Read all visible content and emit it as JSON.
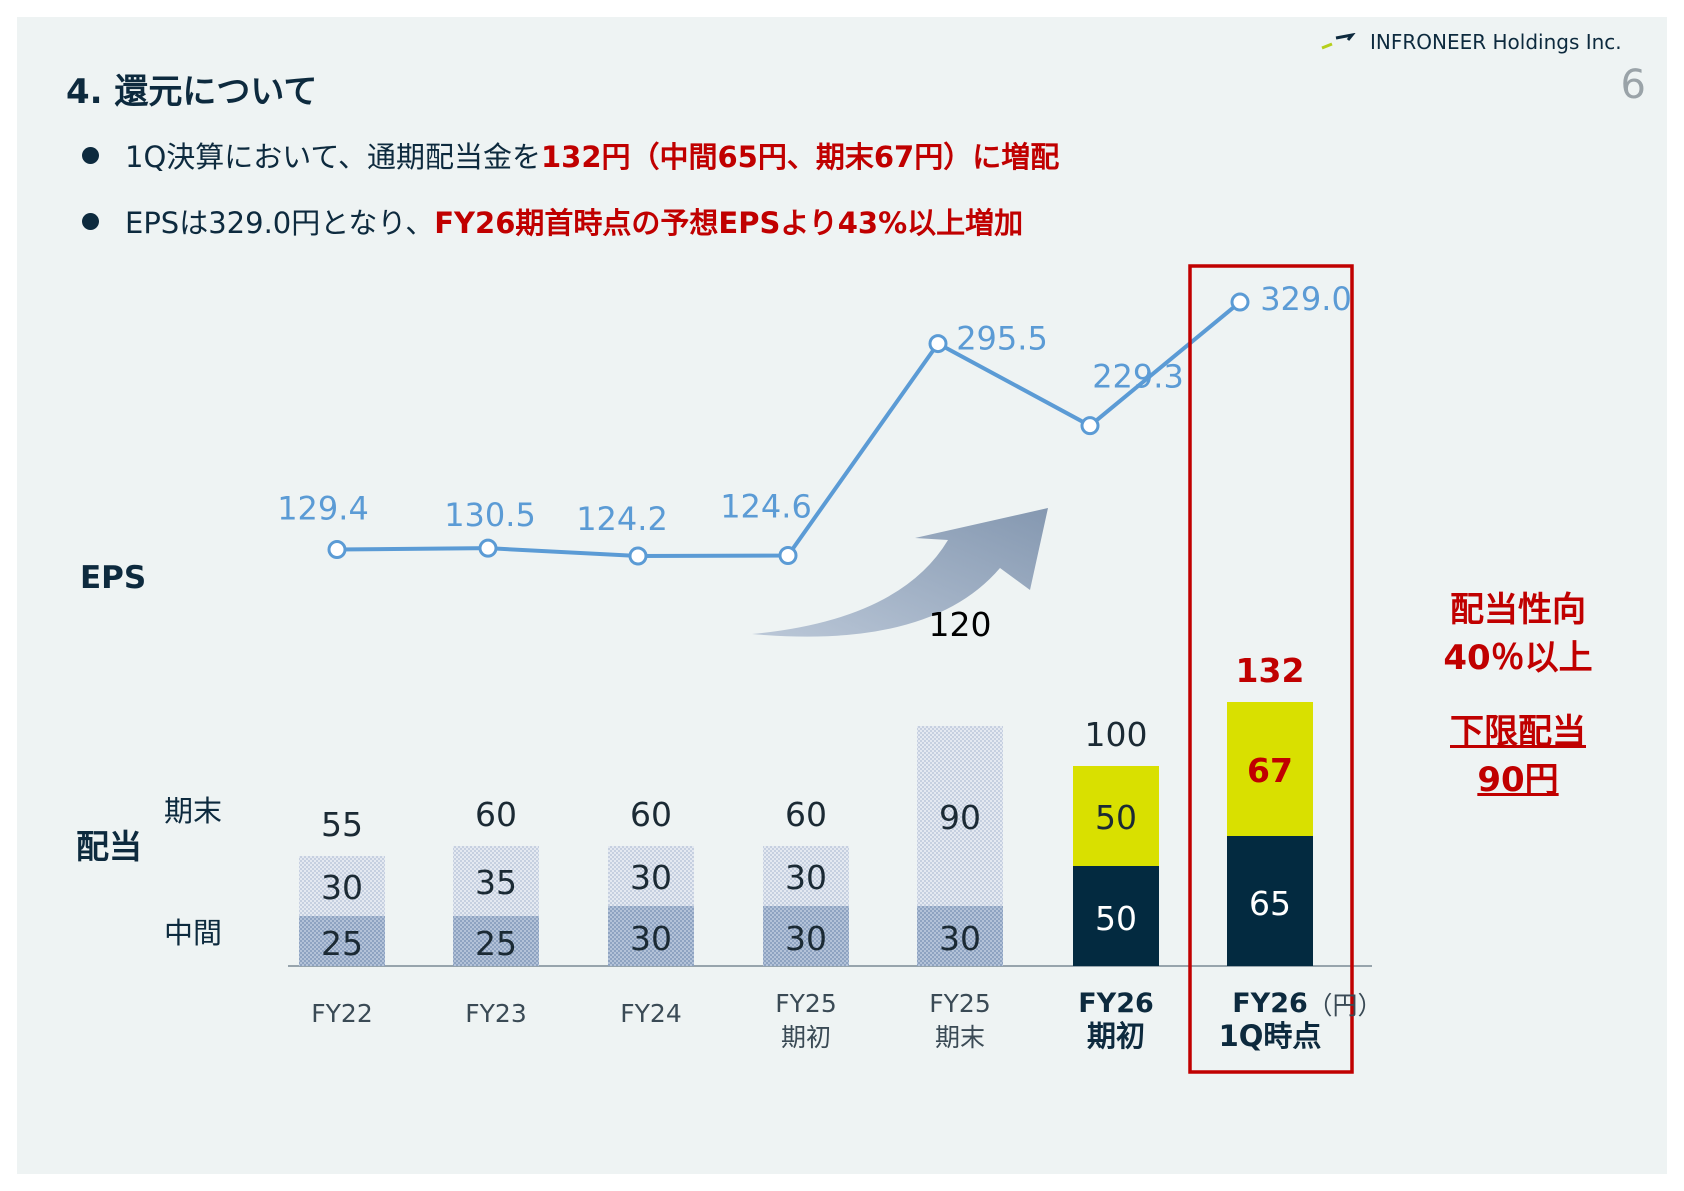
{
  "header": {
    "company": "INFRONEER Holdings Inc.",
    "page_number": "6",
    "title": "4. 還元について"
  },
  "bullets": [
    {
      "plain": "1Q決算において、通期配当金を",
      "highlight": "132円（中間65円、期末67円）に増配"
    },
    {
      "plain": "EPSは329.0円となり、",
      "highlight": "FY26期首時点の予想EPSより43%以上増加"
    }
  ],
  "labels": {
    "eps": "EPS",
    "dividend": "配当",
    "year_end": "期末",
    "interim": "中間",
    "unit": "（円）"
  },
  "note": {
    "line1": "配当性向",
    "line2": "40％以上",
    "line3": "下限配当",
    "line4": "90円"
  },
  "colors": {
    "eps_line": "#5b9bd5",
    "highlight_red": "#c00000",
    "navy": "#032a40",
    "yellow": "#d9e000",
    "hatched_light": "#d5dcea",
    "hatched_dark": "#9db0cb",
    "arrow": "#8497b0"
  },
  "chart_data": {
    "type": "bar",
    "categories": [
      "FY22",
      "FY23",
      "FY24",
      "FY25\n期初",
      "FY25\n期末",
      "FY26\n期初",
      "FY26\n1Q時点"
    ],
    "category_lines": [
      [
        "FY22"
      ],
      [
        "FY23"
      ],
      [
        "FY24"
      ],
      [
        "FY25",
        "期初"
      ],
      [
        "FY25",
        "期末"
      ],
      [
        "FY26",
        "期初"
      ],
      [
        "FY26",
        "1Q時点"
      ]
    ],
    "series": [
      {
        "name": "中間",
        "values": [
          25,
          25,
          30,
          30,
          30,
          50,
          65
        ]
      },
      {
        "name": "期末",
        "values": [
          30,
          35,
          30,
          30,
          90,
          50,
          67
        ]
      }
    ],
    "totals": [
      55,
      60,
      60,
      60,
      120,
      100,
      132
    ],
    "stacked": true,
    "line_series": {
      "name": "EPS",
      "values": [
        129.4,
        130.5,
        124.2,
        124.6,
        295.5,
        229.3,
        329.0
      ]
    },
    "value_labels": {
      "interim": [
        "25",
        "25",
        "30",
        "30",
        "30",
        "50",
        "65"
      ],
      "year_end": [
        "30",
        "35",
        "30",
        "30",
        "90",
        "50",
        "67"
      ],
      "totals": [
        "55",
        "60",
        "60",
        "60",
        "120",
        "100",
        "132"
      ],
      "eps": [
        "129.4",
        "130.5",
        "124.2",
        "124.6",
        "295.5",
        "229.3",
        "329.0"
      ]
    },
    "highlighted_category": "FY26\n1Q時点"
  }
}
